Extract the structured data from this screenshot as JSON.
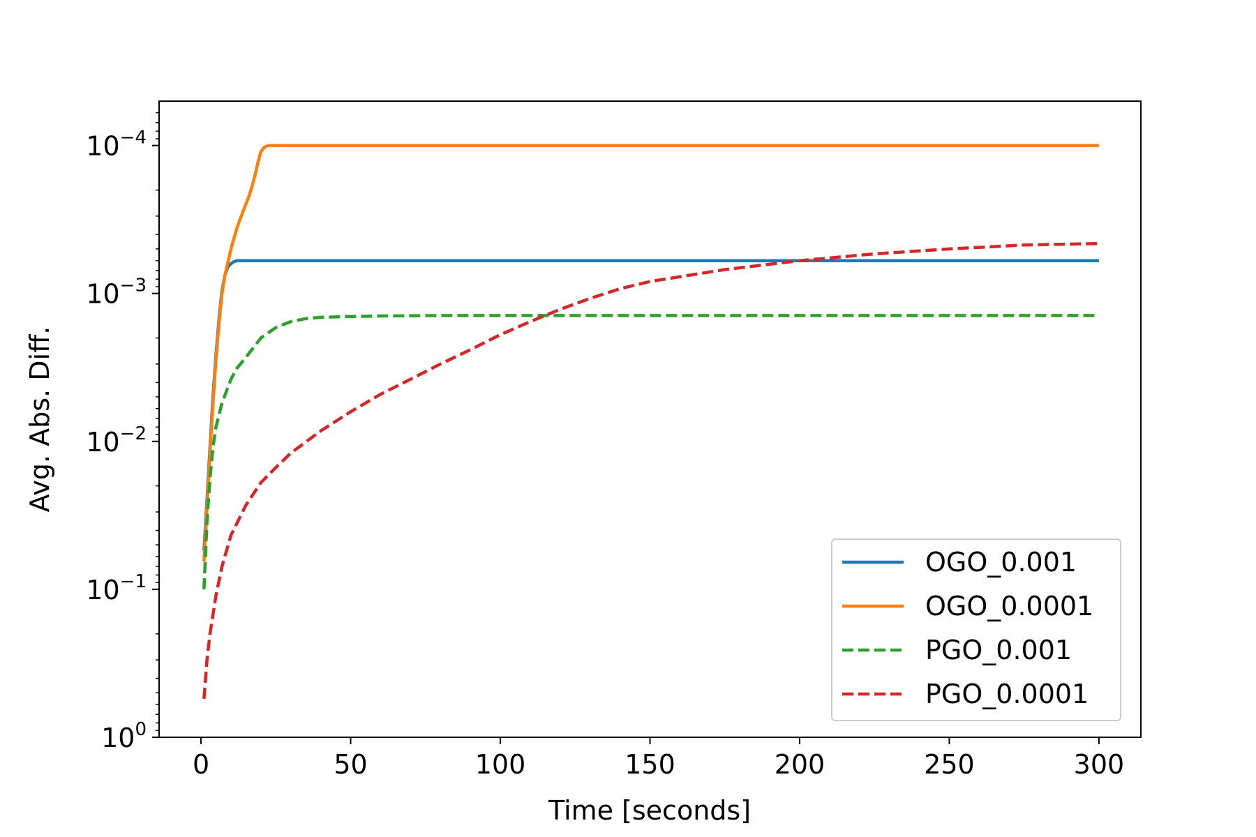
{
  "chart_data": {
    "type": "line",
    "title": "",
    "xlabel": "Time [seconds]",
    "ylabel": "Avg. Abs. Diff.",
    "xlim": [
      -14,
      314
    ],
    "ylim_log10": [
      -4.3,
      0.0
    ],
    "y_scale": "log",
    "y_axis_inverted": true,
    "x_ticks": [
      0,
      50,
      100,
      150,
      200,
      250,
      300
    ],
    "x_tick_labels": [
      "0",
      "50",
      "100",
      "150",
      "200",
      "250",
      "300"
    ],
    "y_ticks_log10": [
      -4,
      -3,
      -2,
      -1,
      0
    ],
    "y_tick_labels": [
      {
        "base": "10",
        "exp": "−4"
      },
      {
        "base": "10",
        "exp": "−3"
      },
      {
        "base": "10",
        "exp": "−2"
      },
      {
        "base": "10",
        "exp": "−1"
      },
      {
        "base": "10",
        "exp": "0"
      }
    ],
    "grid": false,
    "legend_position": "bottom-right",
    "series": [
      {
        "name": "OGO_0.001",
        "color": "#1f77b4",
        "dash": "solid",
        "x": [
          1,
          2,
          3,
          4,
          5,
          6,
          7,
          8,
          9,
          10,
          11,
          12,
          13,
          15,
          20,
          30,
          50,
          100,
          150,
          200,
          250,
          300
        ],
        "y": [
          0.055,
          0.025,
          0.011,
          0.005,
          0.0026,
          0.0015,
          0.00095,
          0.00075,
          0.00066,
          0.00063,
          0.00061,
          0.0006,
          0.0006,
          0.0006,
          0.0006,
          0.0006,
          0.0006,
          0.0006,
          0.0006,
          0.0006,
          0.0006,
          0.0006
        ]
      },
      {
        "name": "OGO_0.0001",
        "color": "#ff7f0e",
        "dash": "solid",
        "x": [
          1,
          2,
          3,
          4,
          5,
          6,
          7,
          8,
          10,
          12,
          14,
          16,
          17,
          18,
          19,
          20,
          21,
          22,
          23,
          25,
          30,
          50,
          100,
          150,
          200,
          250,
          300
        ],
        "y": [
          0.065,
          0.028,
          0.012,
          0.0055,
          0.0028,
          0.0016,
          0.001,
          0.00075,
          0.0005,
          0.00036,
          0.00028,
          0.00022,
          0.00019,
          0.00016,
          0.00013,
          0.00011,
          0.000103,
          0.000101,
          0.0001,
          0.0001,
          0.0001,
          0.0001,
          0.0001,
          0.0001,
          0.0001,
          0.0001,
          0.0001
        ]
      },
      {
        "name": "PGO_0.001",
        "color": "#2ca02c",
        "dash": "dashed",
        "x": [
          1,
          2,
          3,
          4,
          5,
          7,
          10,
          12,
          15,
          20,
          25,
          30,
          35,
          40,
          50,
          60,
          80,
          100,
          150,
          200,
          250,
          300
        ],
        "y": [
          0.1,
          0.035,
          0.018,
          0.011,
          0.008,
          0.0055,
          0.0038,
          0.0032,
          0.0027,
          0.002,
          0.0017,
          0.00155,
          0.00148,
          0.00145,
          0.00143,
          0.00142,
          0.00141,
          0.00141,
          0.00141,
          0.00141,
          0.00141,
          0.00141
        ]
      },
      {
        "name": "PGO_0.0001",
        "color": "#d62728",
        "dash": "dashed",
        "x": [
          1,
          2,
          3,
          5,
          7,
          10,
          15,
          20,
          25,
          30,
          40,
          50,
          60,
          70,
          80,
          90,
          100,
          110,
          120,
          130,
          140,
          150,
          175,
          200,
          225,
          250,
          275,
          300
        ],
        "y": [
          0.55,
          0.3,
          0.2,
          0.11,
          0.07,
          0.043,
          0.027,
          0.019,
          0.015,
          0.012,
          0.0085,
          0.0063,
          0.0048,
          0.0038,
          0.003,
          0.0024,
          0.0019,
          0.00155,
          0.00128,
          0.00108,
          0.00093,
          0.00083,
          0.00069,
          0.0006,
          0.00054,
          0.0005,
          0.00047,
          0.00046
        ]
      }
    ]
  }
}
